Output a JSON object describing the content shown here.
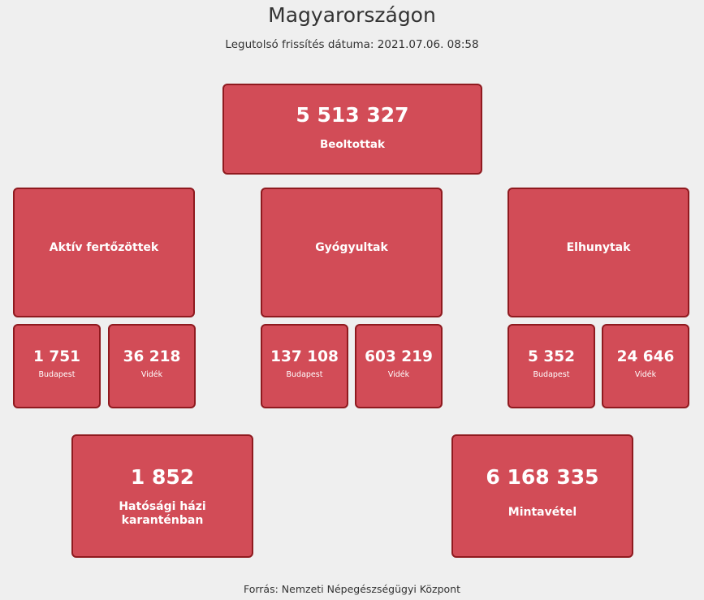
{
  "header": {
    "title": "Magyarországon",
    "updated": "Legutolsó frissítés dátuma: 2021.07.06. 08:58"
  },
  "vaccinated": {
    "value": "5 513 327",
    "label": "Beoltottak"
  },
  "active": {
    "label": "Aktív fertőzöttek",
    "budapest": {
      "value": "1 751",
      "label": "Budapest"
    },
    "countryside": {
      "value": "36 218",
      "label": "Vidék"
    }
  },
  "recovered": {
    "label": "Gyógyultak",
    "budapest": {
      "value": "137 108",
      "label": "Budapest"
    },
    "countryside": {
      "value": "603 219",
      "label": "Vidék"
    }
  },
  "deceased": {
    "label": "Elhunytak",
    "budapest": {
      "value": "5 352",
      "label": "Budapest"
    },
    "countryside": {
      "value": "24 646",
      "label": "Vidék"
    }
  },
  "quarantine": {
    "value": "1 852",
    "label": "Hatósági házi karanténban"
  },
  "samples": {
    "value": "6 168 335",
    "label": "Mintavétel"
  },
  "footer": {
    "source": "Forrás: Nemzeti Népegészségügyi Központ"
  },
  "colors": {
    "box_fill": "#d24c57",
    "box_border": "#8f1a1f",
    "background": "#efefef"
  }
}
